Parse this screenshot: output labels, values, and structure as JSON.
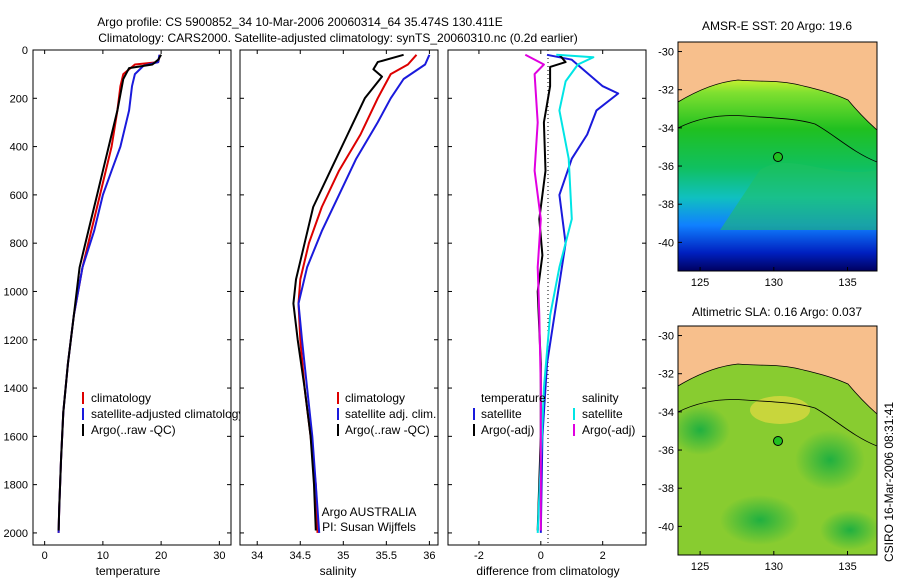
{
  "title_line1": "Argo profile: CS 5900852_34 10-Mar-2006 20060314_64 35.474S 130.411E",
  "title_line2": "Climatology: CARS2000. Satellite-adjusted climatology: synTS_20060310.nc (0.2d earlier)",
  "credit": "CSIRO 16-Mar-2006 08:31:41",
  "note_line1": "Argo AUSTRALIA",
  "note_line2": "PI: Susan Wijffels",
  "colors": {
    "climatology": "#dd0000",
    "satellite": "#1a1adc",
    "argo": "#000000",
    "salinity_satellite": "#00e5e5",
    "salinity_argo": "#e000e0",
    "land": "#f7bf8c"
  },
  "chart_data": [
    {
      "type": "line",
      "xlabel": "temperature",
      "xlim": [
        -2,
        32
      ],
      "ylim": [
        2050,
        0
      ],
      "xticks": [
        0,
        10,
        20,
        30
      ],
      "yticks": [
        0,
        200,
        400,
        600,
        800,
        1000,
        1200,
        1400,
        1600,
        1800,
        2000
      ],
      "legend": [
        "climatology",
        "satellite-adjusted climatology",
        "Argo(..raw -QC)"
      ],
      "series": [
        {
          "name": "climatology",
          "color_key": "climatology",
          "points": [
            [
              19.8,
              20
            ],
            [
              19.5,
              50
            ],
            [
              15.5,
              60
            ],
            [
              13.5,
              100
            ],
            [
              13.0,
              150
            ],
            [
              12.5,
              250
            ],
            [
              11.5,
              400
            ],
            [
              10.5,
              500
            ],
            [
              9.5,
              600
            ],
            [
              8.0,
              750
            ],
            [
              6.5,
              900
            ],
            [
              5.0,
              1100
            ],
            [
              4.0,
              1300
            ],
            [
              3.2,
              1500
            ],
            [
              2.8,
              1700
            ],
            [
              2.5,
              1900
            ],
            [
              2.4,
              2000
            ]
          ]
        },
        {
          "name": "satellite-adjusted climatology",
          "color_key": "satellite",
          "points": [
            [
              19.7,
              20
            ],
            [
              19.5,
              50
            ],
            [
              17.0,
              65
            ],
            [
              15.5,
              100
            ],
            [
              15.0,
              150
            ],
            [
              14.5,
              250
            ],
            [
              13.0,
              400
            ],
            [
              11.5,
              500
            ],
            [
              10.0,
              600
            ],
            [
              8.5,
              750
            ],
            [
              6.5,
              900
            ],
            [
              5.0,
              1100
            ],
            [
              4.0,
              1300
            ],
            [
              3.2,
              1500
            ],
            [
              2.8,
              1700
            ],
            [
              2.5,
              1900
            ],
            [
              2.4,
              2000
            ]
          ]
        },
        {
          "name": "Argo(..raw -QC)",
          "color_key": "argo",
          "points": [
            [
              20.0,
              20
            ],
            [
              19.5,
              40
            ],
            [
              18.5,
              60
            ],
            [
              14.5,
              75
            ],
            [
              13.5,
              120
            ],
            [
              12.5,
              250
            ],
            [
              11.0,
              400
            ],
            [
              10.0,
              500
            ],
            [
              9.0,
              600
            ],
            [
              7.5,
              750
            ],
            [
              6.0,
              900
            ],
            [
              5.0,
              1100
            ],
            [
              4.0,
              1300
            ],
            [
              3.2,
              1500
            ],
            [
              2.8,
              1700
            ],
            [
              2.5,
              1900
            ],
            [
              2.4,
              1990
            ]
          ]
        }
      ]
    },
    {
      "type": "line",
      "xlabel": "salinity",
      "xlim": [
        33.8,
        36.1
      ],
      "ylim": [
        2050,
        0
      ],
      "xticks": [
        34,
        34.5,
        35,
        35.5,
        36
      ],
      "xticklabels": [
        "34",
        "34.5",
        "35",
        "35.5",
        "36"
      ],
      "yticks": [
        0,
        200,
        400,
        600,
        800,
        1000,
        1200,
        1400,
        1600,
        1800,
        2000
      ],
      "legend": [
        "climatology",
        "satellite adj. clim.",
        "Argo(..raw -QC)"
      ],
      "series": [
        {
          "name": "climatology",
          "color_key": "climatology",
          "points": [
            [
              35.85,
              20
            ],
            [
              35.75,
              60
            ],
            [
              35.55,
              100
            ],
            [
              35.4,
              200
            ],
            [
              35.2,
              350
            ],
            [
              34.95,
              500
            ],
            [
              34.75,
              650
            ],
            [
              34.6,
              800
            ],
            [
              34.5,
              950
            ],
            [
              34.48,
              1050
            ],
            [
              34.5,
              1200
            ],
            [
              34.55,
              1400
            ],
            [
              34.62,
              1600
            ],
            [
              34.68,
              1800
            ],
            [
              34.7,
              2000
            ]
          ]
        },
        {
          "name": "satellite adj. clim.",
          "color_key": "satellite",
          "points": [
            [
              36.0,
              20
            ],
            [
              35.95,
              60
            ],
            [
              35.7,
              120
            ],
            [
              35.55,
              200
            ],
            [
              35.4,
              300
            ],
            [
              35.15,
              450
            ],
            [
              34.95,
              600
            ],
            [
              34.75,
              750
            ],
            [
              34.58,
              900
            ],
            [
              34.48,
              1050
            ],
            [
              34.52,
              1200
            ],
            [
              34.58,
              1400
            ],
            [
              34.64,
              1600
            ],
            [
              34.68,
              1800
            ],
            [
              34.72,
              2000
            ]
          ]
        },
        {
          "name": "Argo(..raw -QC)",
          "color_key": "argo",
          "points": [
            [
              35.7,
              20
            ],
            [
              35.4,
              50
            ],
            [
              35.35,
              80
            ],
            [
              35.45,
              110
            ],
            [
              35.25,
              200
            ],
            [
              35.05,
              350
            ],
            [
              34.85,
              500
            ],
            [
              34.65,
              650
            ],
            [
              34.55,
              800
            ],
            [
              34.45,
              950
            ],
            [
              34.42,
              1050
            ],
            [
              34.47,
              1200
            ],
            [
              34.55,
              1400
            ],
            [
              34.62,
              1600
            ],
            [
              34.66,
              1800
            ],
            [
              34.68,
              1990
            ]
          ]
        }
      ]
    },
    {
      "type": "line",
      "xlabel": "difference from climatology",
      "xlim": [
        -3,
        3.4
      ],
      "ylim": [
        2050,
        0
      ],
      "xticks": [
        -2,
        0,
        2
      ],
      "yticks": [
        0,
        200,
        400,
        600,
        800,
        1000,
        1200,
        1400,
        1600,
        1800,
        2000
      ],
      "legend_temperature_heading": "temperature",
      "legend_salinity_heading": "salinity",
      "legend": [
        "satellite",
        "Argo(-adj)",
        "satellite",
        "Argo(-adj)"
      ],
      "series": [
        {
          "name": "temperature satellite",
          "color_key": "satellite",
          "points": [
            [
              0.2,
              20
            ],
            [
              1.0,
              40
            ],
            [
              2.0,
              150
            ],
            [
              2.5,
              180
            ],
            [
              1.8,
              250
            ],
            [
              1.5,
              350
            ],
            [
              1.0,
              450
            ],
            [
              0.6,
              600
            ],
            [
              0.8,
              800
            ],
            [
              0.5,
              1050
            ],
            [
              0.2,
              1300
            ],
            [
              0.05,
              1600
            ],
            [
              0.0,
              2000
            ]
          ]
        },
        {
          "name": "temperature Argo(-adj)",
          "color_key": "argo",
          "points": [
            [
              0.6,
              20
            ],
            [
              0.8,
              50
            ],
            [
              0.3,
              70
            ],
            [
              0.3,
              150
            ],
            [
              0.1,
              300
            ],
            [
              0.15,
              500
            ],
            [
              -0.05,
              700
            ],
            [
              0.05,
              850
            ],
            [
              -0.1,
              1000
            ],
            [
              0.0,
              1300
            ],
            [
              0.0,
              1600
            ],
            [
              -0.1,
              1990
            ]
          ]
        },
        {
          "name": "salinity satellite",
          "color_key": "salinity_satellite",
          "points": [
            [
              0.5,
              20
            ],
            [
              1.7,
              30
            ],
            [
              1.2,
              60
            ],
            [
              0.8,
              130
            ],
            [
              0.6,
              250
            ],
            [
              0.9,
              450
            ],
            [
              1.0,
              700
            ],
            [
              0.6,
              900
            ],
            [
              0.3,
              1100
            ],
            [
              0.1,
              1400
            ],
            [
              0.0,
              1700
            ],
            [
              -0.1,
              2000
            ]
          ]
        },
        {
          "name": "salinity Argo(-adj)",
          "color_key": "salinity_argo",
          "points": [
            [
              -0.5,
              20
            ],
            [
              0.1,
              60
            ],
            [
              -0.2,
              100
            ],
            [
              -0.1,
              300
            ],
            [
              -0.2,
              500
            ],
            [
              0.0,
              700
            ],
            [
              -0.1,
              900
            ],
            [
              -0.05,
              1100
            ],
            [
              0.0,
              1400
            ],
            [
              0.0,
              1990
            ]
          ]
        }
      ]
    },
    {
      "type": "heatmap",
      "title": "AMSR-E SST: 20 Argo: 19.6",
      "xlim": [
        123.5,
        137
      ],
      "ylim": [
        -41.5,
        -29.5
      ],
      "xticks": [
        125,
        130,
        135
      ],
      "yticks": [
        -30,
        -32,
        -34,
        -36,
        -38,
        -40
      ],
      "argo_position": [
        130.4,
        -35.5
      ]
    },
    {
      "type": "heatmap",
      "title": "Altimetric SLA: 0.16 Argo: 0.037",
      "xlim": [
        123.5,
        137
      ],
      "ylim": [
        -41.5,
        -29.5
      ],
      "xticks": [
        125,
        130,
        135
      ],
      "yticks": [
        -30,
        -32,
        -34,
        -36,
        -38,
        -40
      ],
      "argo_position": [
        130.4,
        -35.5
      ]
    }
  ]
}
